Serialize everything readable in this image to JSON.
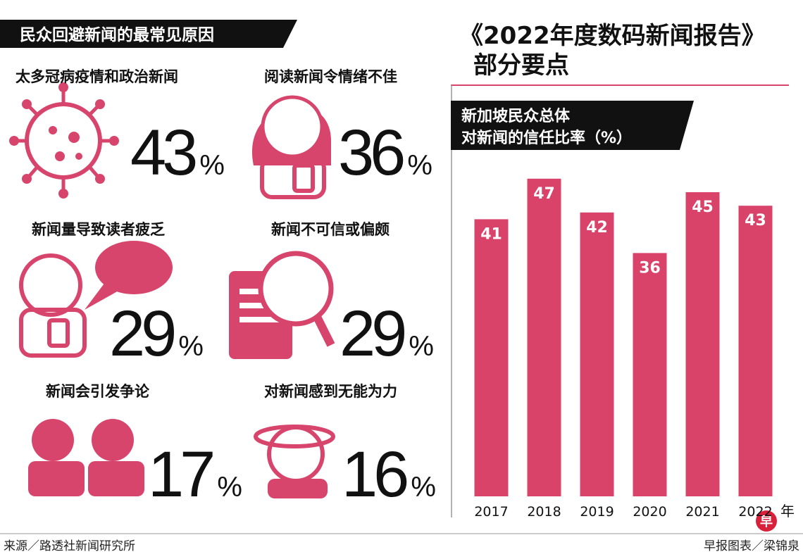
{
  "left_header": "民众回避新闻的最常见原因",
  "report_title": "《2022年度数码新闻报告》",
  "report_subtitle": "部分要点",
  "reasons": {
    "unit": "%",
    "items": [
      {
        "label": "太多冠病疫情和政治新闻",
        "value": 43
      },
      {
        "label": "阅读新闻令情绪不佳",
        "value": 36
      },
      {
        "label": "新闻量导致读者疲乏",
        "value": 29
      },
      {
        "label": "新闻不可信或偏颇",
        "value": 29
      },
      {
        "label": "新闻会引发争论",
        "value": 17
      },
      {
        "label": "对新闻感到无能为力",
        "value": 16
      }
    ]
  },
  "chart_data": {
    "type": "bar",
    "title_lines": [
      "新加坡民众总体",
      "对新闻的信任比率（%）"
    ],
    "categories": [
      "2017",
      "2018",
      "2019",
      "2020",
      "2021",
      "2022"
    ],
    "x_unit": "年",
    "values": [
      41,
      47,
      42,
      36,
      45,
      43
    ],
    "color": "#d9436a"
  },
  "footer": {
    "source": "来源／路透社新闻研究所",
    "credit": "早报图表／梁锦泉",
    "logo": "早"
  }
}
